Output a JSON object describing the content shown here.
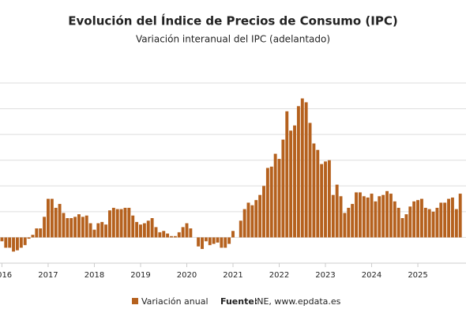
{
  "chart_data": {
    "type": "bar",
    "title": "Evolución del Índice de Precios de Consumo (IPC)",
    "subtitle": "Variación interanual del IPC (adelantado)",
    "categories": [
      "2016",
      null,
      null,
      null,
      null,
      null,
      null,
      null,
      null,
      null,
      null,
      null,
      "2017",
      null,
      null,
      null,
      null,
      null,
      null,
      null,
      null,
      null,
      null,
      null,
      "2018",
      null,
      null,
      null,
      null,
      null,
      null,
      null,
      null,
      null,
      null,
      null,
      "2019",
      null,
      null,
      null,
      null,
      null,
      null,
      null,
      null,
      null,
      null,
      null,
      "2020",
      null,
      null,
      null,
      null,
      null,
      null,
      null,
      null,
      null,
      null,
      null,
      "2021",
      null,
      null,
      null,
      null,
      null,
      null,
      null,
      null,
      null,
      null,
      null,
      "2022",
      null,
      null,
      null,
      null,
      null,
      null,
      null,
      null,
      null,
      null,
      null,
      "2023",
      null,
      null,
      null,
      null,
      null,
      null,
      null,
      null,
      null,
      null,
      null,
      "2024",
      null,
      null,
      null,
      null,
      null,
      null,
      null,
      null,
      null,
      null,
      null,
      "2025",
      null,
      null,
      null,
      null,
      null,
      null,
      null,
      null,
      null,
      null,
      null
    ],
    "series": [
      {
        "name": "Variación anual",
        "color": "#b5611e",
        "values": [
          -0.3,
          -0.8,
          -0.8,
          -1.1,
          -1.0,
          -0.8,
          -0.6,
          -0.1,
          0.2,
          0.7,
          0.7,
          1.6,
          3.0,
          3.0,
          2.3,
          2.6,
          1.9,
          1.5,
          1.5,
          1.6,
          1.8,
          1.6,
          1.7,
          1.1,
          0.6,
          1.1,
          1.2,
          1.0,
          2.1,
          2.3,
          2.2,
          2.2,
          2.3,
          2.3,
          1.7,
          1.2,
          1.0,
          1.1,
          1.3,
          1.5,
          0.8,
          0.4,
          0.5,
          0.3,
          0.1,
          0.1,
          0.4,
          0.8,
          1.1,
          0.7,
          0.0,
          -0.7,
          -0.9,
          -0.3,
          -0.6,
          -0.5,
          -0.4,
          -0.8,
          -0.8,
          -0.5,
          0.5,
          0.0,
          1.3,
          2.2,
          2.7,
          2.5,
          2.9,
          3.3,
          4.0,
          5.4,
          5.5,
          6.5,
          6.1,
          7.6,
          9.8,
          8.3,
          8.7,
          10.2,
          10.8,
          10.5,
          8.9,
          7.3,
          6.8,
          5.7,
          5.9,
          6.0,
          3.3,
          4.1,
          3.2,
          1.9,
          2.3,
          2.6,
          3.5,
          3.5,
          3.2,
          3.1,
          3.4,
          2.8,
          3.2,
          3.3,
          3.6,
          3.4,
          2.8,
          2.3,
          1.5,
          1.8,
          2.4,
          2.8,
          2.9,
          3.0,
          2.3,
          2.2,
          2.0,
          2.3,
          2.7,
          2.7,
          3.0,
          3.1,
          2.2,
          3.4
        ]
      }
    ],
    "ylim": [
      -2,
      12
    ],
    "yticks": [
      0,
      2,
      4,
      6,
      8,
      10,
      12
    ],
    "grid": true,
    "source_label": "Fuente:",
    "source": "INE, www.epdata.es"
  }
}
